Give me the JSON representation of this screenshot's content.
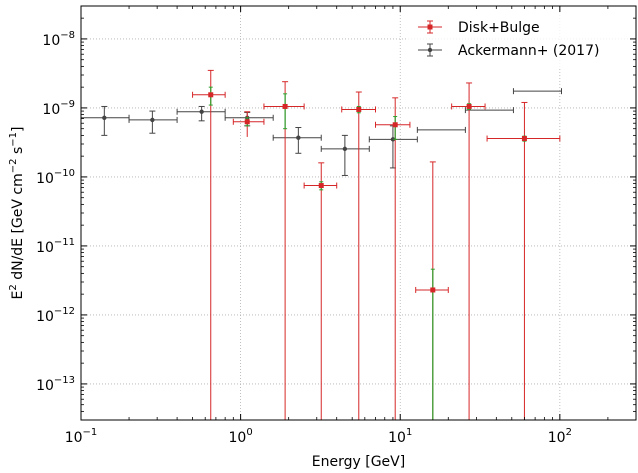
{
  "chart_data": {
    "type": "scatter",
    "xlabel": "Energy [GeV]",
    "ylabel_parts": {
      "main": "E",
      "sup1": "2",
      "mid": " dN/dE [GeV cm",
      "sup2": "−2",
      "mid2": " s",
      "sup3": "−1",
      "end": "]"
    },
    "xscale": "log",
    "yscale": "log",
    "xlim": [
      0.1,
      300
    ],
    "ylim": [
      3e-14,
      3e-08
    ],
    "x_ticks": [
      {
        "value": 0.1,
        "base": "10",
        "exp": "−1"
      },
      {
        "value": 1,
        "base": "10",
        "exp": "0"
      },
      {
        "value": 10,
        "base": "10",
        "exp": "1"
      },
      {
        "value": 100,
        "base": "10",
        "exp": "2"
      }
    ],
    "y_ticks": [
      {
        "value": 1e-13,
        "base": "10",
        "exp": "−13"
      },
      {
        "value": 1e-12,
        "base": "10",
        "exp": "−12"
      },
      {
        "value": 1e-11,
        "base": "10",
        "exp": "−11"
      },
      {
        "value": 1e-10,
        "base": "10",
        "exp": "−10"
      },
      {
        "value": 1e-09,
        "base": "10",
        "exp": "−9"
      },
      {
        "value": 1e-08,
        "base": "10",
        "exp": "−8"
      }
    ],
    "grid": true,
    "legend_position": "top-right",
    "series": [
      {
        "name": "Disk+Bulge",
        "color": "#d62728",
        "secondary_color": "#2ca02c",
        "points": [
          {
            "x": 0.65,
            "xlo": 0.5,
            "xhi": 0.8,
            "y": 1.55e-09,
            "ylo": 1e-14,
            "yhi": 3.5e-09,
            "inner_lo": 1.1e-09,
            "inner_hi": 2e-09
          },
          {
            "x": 1.1,
            "xlo": 0.9,
            "xhi": 1.4,
            "y": 6.3e-10,
            "ylo": 3.8e-10,
            "yhi": 8.8e-10,
            "inner_lo": 5.5e-10,
            "inner_hi": 7.2e-10
          },
          {
            "x": 1.9,
            "xlo": 1.4,
            "xhi": 2.5,
            "y": 1.05e-09,
            "ylo": 1e-14,
            "yhi": 2.4e-09,
            "inner_lo": 5e-10,
            "inner_hi": 1.6e-09
          },
          {
            "x": 3.2,
            "xlo": 2.5,
            "xhi": 4.0,
            "y": 7.5e-11,
            "ylo": 1e-14,
            "yhi": 1.6e-10,
            "inner_lo": 6.5e-11,
            "inner_hi": 8.5e-11
          },
          {
            "x": 5.5,
            "xlo": 4.3,
            "xhi": 7.0,
            "y": 9.5e-10,
            "ylo": 1e-14,
            "yhi": 1.7e-09,
            "inner_lo": 8.5e-10,
            "inner_hi": 1.05e-09
          },
          {
            "x": 9.3,
            "xlo": 7.0,
            "xhi": 11.5,
            "y": 5.7e-10,
            "ylo": 1e-14,
            "yhi": 1.4e-09,
            "inner_lo": 3.5e-10,
            "inner_hi": 7.5e-10
          },
          {
            "x": 16,
            "xlo": 12.5,
            "xhi": 20,
            "y": 2.3e-12,
            "ylo": 1e-14,
            "yhi": 1.65e-10,
            "inner_lo": 3e-14,
            "inner_hi": 4.6e-12
          },
          {
            "x": 27,
            "xlo": 21,
            "xhi": 34,
            "y": 1.05e-09,
            "ylo": 1e-14,
            "yhi": 2.3e-09,
            "inner_lo": 9.5e-10,
            "inner_hi": 1.15e-09
          },
          {
            "x": 60,
            "xlo": 35,
            "xhi": 100,
            "y": 3.6e-10,
            "ylo": 1e-14,
            "yhi": 1.2e-09,
            "inner_lo": 3.3e-10,
            "inner_hi": 3.9e-10
          }
        ]
      },
      {
        "name": "Ackermann+ (2017)",
        "color": "#444444",
        "points": [
          {
            "x": 0.14,
            "xlo": 0.1,
            "xhi": 0.2,
            "y": 7.2e-10,
            "ylo": 4e-10,
            "yhi": 1.05e-09
          },
          {
            "x": 0.28,
            "xlo": 0.2,
            "xhi": 0.4,
            "y": 6.7e-10,
            "ylo": 4.3e-10,
            "yhi": 9e-10
          },
          {
            "x": 0.57,
            "xlo": 0.4,
            "xhi": 0.8,
            "y": 8.8e-10,
            "ylo": 6.5e-10,
            "yhi": 1.05e-09
          },
          {
            "x": 1.1,
            "xlo": 0.8,
            "xhi": 1.6,
            "y": 7.2e-10,
            "ylo": 5.5e-10,
            "yhi": 8.6e-10
          },
          {
            "x": 2.3,
            "xlo": 1.6,
            "xhi": 3.2,
            "y": 3.7e-10,
            "ylo": 2.2e-10,
            "yhi": 5.2e-10
          },
          {
            "x": 4.5,
            "xlo": 3.2,
            "xhi": 6.4,
            "y": 2.55e-10,
            "ylo": 1.05e-10,
            "yhi": 4e-10
          },
          {
            "x": 9.0,
            "xlo": 6.4,
            "xhi": 12.8,
            "y": 3.5e-10,
            "ylo": 1.35e-10,
            "yhi": 5.5e-10
          },
          {
            "x": 18,
            "xlo": 12.8,
            "xhi": 25.6,
            "y": 4.8e-10,
            "ylo": null,
            "yhi": null
          },
          {
            "x": 36,
            "xlo": 25.6,
            "xhi": 51.2,
            "y": 9.3e-10,
            "ylo": null,
            "yhi": null
          },
          {
            "x": 72,
            "xlo": 51.2,
            "xhi": 102.4,
            "y": 1.75e-09,
            "ylo": null,
            "yhi": null
          }
        ]
      }
    ]
  }
}
